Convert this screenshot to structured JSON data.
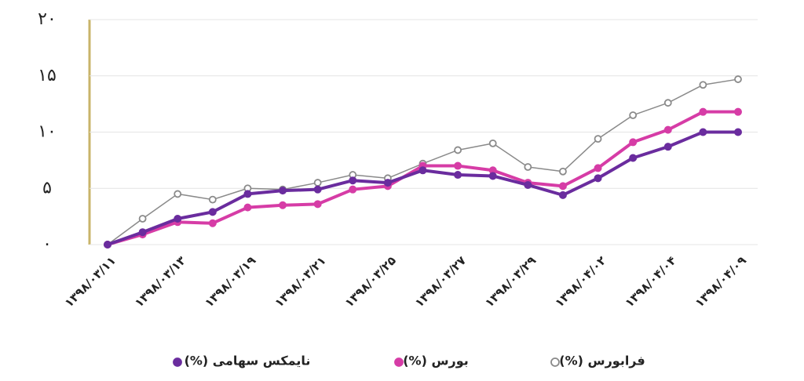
{
  "chart_data": {
    "type": "line",
    "categories": [
      "۱۳۹۸/۰۳/۱۱",
      null,
      "۱۳۹۸/۰۳/۱۳",
      null,
      "۱۳۹۸/۰۳/۱۹",
      null,
      "۱۳۹۸/۰۳/۲۱",
      null,
      "۱۳۹۸/۰۳/۲۵",
      null,
      "۱۳۹۸/۰۳/۲۷",
      null,
      "۱۳۹۸/۰۳/۲۹",
      null,
      "۱۳۹۸/۰۴/۰۲",
      null,
      "۱۳۹۸/۰۴/۰۴",
      null,
      "۱۳۹۸/۰۴/۰۹"
    ],
    "series": [
      {
        "name": "نایمکس سهامی (%)",
        "color": "#6a2c9e",
        "marker": "filled",
        "values": [
          0,
          1.1,
          2.3,
          2.9,
          4.5,
          4.8,
          4.9,
          5.7,
          5.5,
          6.6,
          6.2,
          6.1,
          5.3,
          4.4,
          5.9,
          7.7,
          8.7,
          10.0,
          10.0
        ]
      },
      {
        "name": "بورس (%)",
        "color": "#d63ca6",
        "marker": "filled",
        "values": [
          0,
          0.9,
          2.0,
          1.9,
          3.3,
          3.5,
          3.6,
          4.9,
          5.2,
          7.0,
          7.0,
          6.6,
          5.5,
          5.2,
          6.8,
          9.1,
          10.2,
          11.8,
          11.8
        ]
      },
      {
        "name": "فرابورس (%)",
        "color": "#8a8a8a",
        "marker": "open",
        "values": [
          0,
          2.3,
          4.5,
          4.0,
          5.0,
          4.9,
          5.5,
          6.2,
          5.9,
          7.2,
          8.4,
          9.0,
          6.9,
          6.5,
          9.4,
          11.5,
          12.6,
          14.2,
          14.7
        ]
      }
    ],
    "ylim": [
      0,
      20
    ],
    "yticks": [
      {
        "value": 0,
        "label": "۰"
      },
      {
        "value": 5,
        "label": "۵"
      },
      {
        "value": 10,
        "label": "۱۰"
      },
      {
        "value": 15,
        "label": "۱۵"
      },
      {
        "value": 20,
        "label": "۲۰"
      }
    ],
    "grid": true
  }
}
